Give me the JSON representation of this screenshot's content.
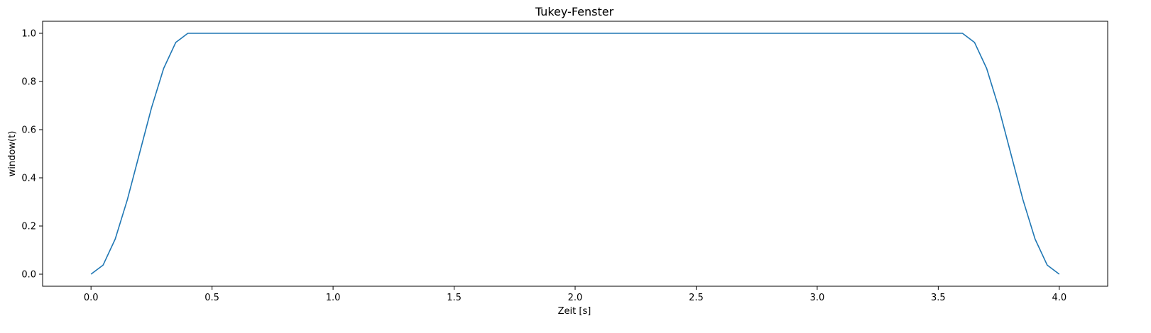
{
  "chart_data": {
    "type": "line",
    "title": "Tukey-Fenster",
    "xlabel": "Zeit [s]",
    "ylabel": "window(t)",
    "xlim": [
      -0.2,
      4.2
    ],
    "ylim": [
      -0.05,
      1.05
    ],
    "xticks": [
      0.0,
      0.5,
      1.0,
      1.5,
      2.0,
      2.5,
      3.0,
      3.5,
      4.0
    ],
    "xtick_labels": [
      "0.0",
      "0.5",
      "1.0",
      "1.5",
      "2.0",
      "2.5",
      "3.0",
      "3.5",
      "4.0"
    ],
    "yticks": [
      0.0,
      0.2,
      0.4,
      0.6,
      0.8,
      1.0
    ],
    "ytick_labels": [
      "0.0",
      "0.2",
      "0.4",
      "0.6",
      "0.8",
      "1.0"
    ],
    "grid": false,
    "series": [
      {
        "color": "#1f77b4",
        "x": [
          0.0,
          0.05,
          0.1,
          0.15,
          0.2,
          0.25,
          0.3,
          0.35,
          0.4,
          0.5,
          1.0,
          1.5,
          2.0,
          2.5,
          3.0,
          3.5,
          3.6,
          3.65,
          3.7,
          3.75,
          3.8,
          3.85,
          3.9,
          3.95,
          4.0
        ],
        "y": [
          0.0,
          0.038,
          0.146,
          0.309,
          0.5,
          0.691,
          0.854,
          0.962,
          1.0,
          1.0,
          1.0,
          1.0,
          1.0,
          1.0,
          1.0,
          1.0,
          1.0,
          0.962,
          0.854,
          0.691,
          0.5,
          0.309,
          0.146,
          0.038,
          0.0
        ]
      }
    ]
  }
}
